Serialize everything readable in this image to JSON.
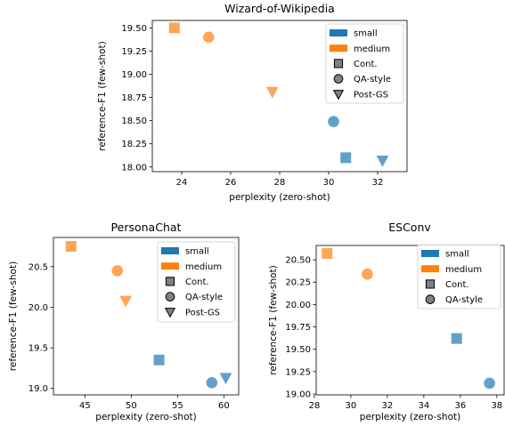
{
  "colors": {
    "small": "#1f77b4",
    "medium": "#ff7f0e"
  },
  "chart_data": [
    {
      "type": "scatter",
      "title": "Wizard-of-Wikipedia",
      "xlabel": "perplexity (zero-shot)",
      "ylabel": "reference-F1 (few-shot)",
      "xlim": [
        22.8,
        33.2
      ],
      "ylim": [
        17.95,
        19.58
      ],
      "xticks": [
        24,
        26,
        28,
        30,
        32
      ],
      "yticks": [
        18.0,
        18.25,
        18.5,
        18.75,
        19.0,
        19.25,
        19.5
      ],
      "yformat": 2,
      "legend_position": "upper right",
      "legend": [
        {
          "kind": "patch",
          "color": "small",
          "label": "small"
        },
        {
          "kind": "patch",
          "color": "medium",
          "label": "medium"
        },
        {
          "kind": "marker",
          "marker": "square",
          "label": "Cont."
        },
        {
          "kind": "marker",
          "marker": "circle",
          "label": "QA-style"
        },
        {
          "kind": "marker",
          "marker": "triangle",
          "label": "Post-GS"
        }
      ],
      "points": [
        {
          "size": "medium",
          "method": "Cont.",
          "marker": "square",
          "x": 23.7,
          "y": 19.5
        },
        {
          "size": "medium",
          "method": "QA-style",
          "marker": "circle",
          "x": 25.1,
          "y": 19.4
        },
        {
          "size": "medium",
          "method": "Post-GS",
          "marker": "triangle",
          "x": 27.7,
          "y": 18.81
        },
        {
          "size": "small",
          "method": "QA-style",
          "marker": "circle",
          "x": 30.2,
          "y": 18.49
        },
        {
          "size": "small",
          "method": "Cont.",
          "marker": "square",
          "x": 30.7,
          "y": 18.1
        },
        {
          "size": "small",
          "method": "Post-GS",
          "marker": "triangle",
          "x": 32.2,
          "y": 18.07
        }
      ]
    },
    {
      "type": "scatter",
      "title": "PersonaChat",
      "xlabel": "perplexity (zero-shot)",
      "ylabel": "reference-F1 (few-shot)",
      "xlim": [
        41.6,
        61.6
      ],
      "ylim": [
        18.92,
        20.86
      ],
      "xticks": [
        45,
        50,
        55,
        60
      ],
      "yticks": [
        19.0,
        19.5,
        20.0,
        20.5
      ],
      "yformat": 1,
      "legend_position": "upper right",
      "legend": [
        {
          "kind": "patch",
          "color": "small",
          "label": "small"
        },
        {
          "kind": "patch",
          "color": "medium",
          "label": "medium"
        },
        {
          "kind": "marker",
          "marker": "square",
          "label": "Cont."
        },
        {
          "kind": "marker",
          "marker": "circle",
          "label": "QA-style"
        },
        {
          "kind": "marker",
          "marker": "triangle",
          "label": "Post-GS"
        }
      ],
      "points": [
        {
          "size": "medium",
          "method": "Cont.",
          "marker": "square",
          "x": 43.5,
          "y": 20.75
        },
        {
          "size": "medium",
          "method": "QA-style",
          "marker": "circle",
          "x": 48.5,
          "y": 20.45
        },
        {
          "size": "medium",
          "method": "Post-GS",
          "marker": "triangle",
          "x": 49.4,
          "y": 20.08
        },
        {
          "size": "small",
          "method": "Cont.",
          "marker": "square",
          "x": 53.0,
          "y": 19.35
        },
        {
          "size": "small",
          "method": "QA-style",
          "marker": "circle",
          "x": 58.7,
          "y": 19.07
        },
        {
          "size": "small",
          "method": "Post-GS",
          "marker": "triangle",
          "x": 60.2,
          "y": 19.13
        }
      ]
    },
    {
      "type": "scatter",
      "title": "ESConv",
      "xlabel": "perplexity (zero-shot)",
      "ylabel": "reference-F1 (few-shot)",
      "xlim": [
        28.1,
        38.4
      ],
      "ylim": [
        18.99,
        20.66
      ],
      "xticks": [
        28,
        30,
        32,
        34,
        36,
        38
      ],
      "yticks": [
        19.0,
        19.25,
        19.5,
        19.75,
        20.0,
        20.25,
        20.5
      ],
      "yformat": 2,
      "legend_position": "upper right",
      "legend": [
        {
          "kind": "patch",
          "color": "small",
          "label": "small"
        },
        {
          "kind": "patch",
          "color": "medium",
          "label": "medium"
        },
        {
          "kind": "marker",
          "marker": "square",
          "label": "Cont."
        },
        {
          "kind": "marker",
          "marker": "circle",
          "label": "QA-style"
        }
      ],
      "points": [
        {
          "size": "medium",
          "method": "Cont.",
          "marker": "square",
          "x": 28.7,
          "y": 20.57
        },
        {
          "size": "medium",
          "method": "QA-style",
          "marker": "circle",
          "x": 30.9,
          "y": 20.34
        },
        {
          "size": "small",
          "method": "Cont.",
          "marker": "square",
          "x": 35.8,
          "y": 19.62
        },
        {
          "size": "small",
          "method": "QA-style",
          "marker": "circle",
          "x": 37.6,
          "y": 19.12
        }
      ]
    }
  ]
}
